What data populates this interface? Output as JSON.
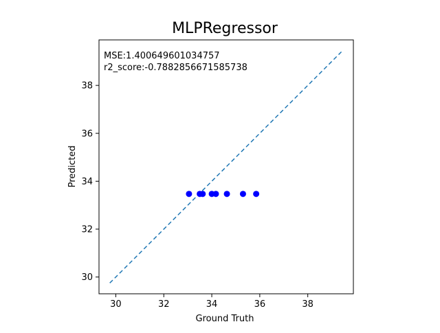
{
  "chart_data": {
    "type": "scatter",
    "title": "MLPRegressor",
    "xlabel": "Ground Truth",
    "ylabel": "Predicted",
    "xlim": [
      29.3,
      39.9
    ],
    "ylim": [
      29.3,
      39.9
    ],
    "xticks": [
      30,
      32,
      34,
      36,
      38
    ],
    "yticks": [
      30,
      32,
      34,
      36,
      38
    ],
    "tick_labels_x": [
      "30",
      "32",
      "34",
      "36",
      "38"
    ],
    "tick_labels_y": [
      "30",
      "32",
      "34",
      "36",
      "38"
    ],
    "annotations": [
      "MSE:1.400649601034757",
      "r2_score:-0.7882856671585738"
    ],
    "points": [
      {
        "x": 33.05,
        "y": 33.47
      },
      {
        "x": 33.5,
        "y": 33.47
      },
      {
        "x": 33.62,
        "y": 33.47
      },
      {
        "x": 34.0,
        "y": 33.47
      },
      {
        "x": 34.17,
        "y": 33.47
      },
      {
        "x": 34.63,
        "y": 33.47
      },
      {
        "x": 35.3,
        "y": 33.47
      },
      {
        "x": 35.85,
        "y": 33.47
      }
    ],
    "reference_line": {
      "x": [
        29.75,
        39.4
      ],
      "y": [
        29.75,
        39.4
      ],
      "style": "dashed"
    },
    "grid": false,
    "colors": {
      "points": "#0000ff",
      "reference_line": "#1f77b4",
      "axes": "#000000"
    }
  }
}
